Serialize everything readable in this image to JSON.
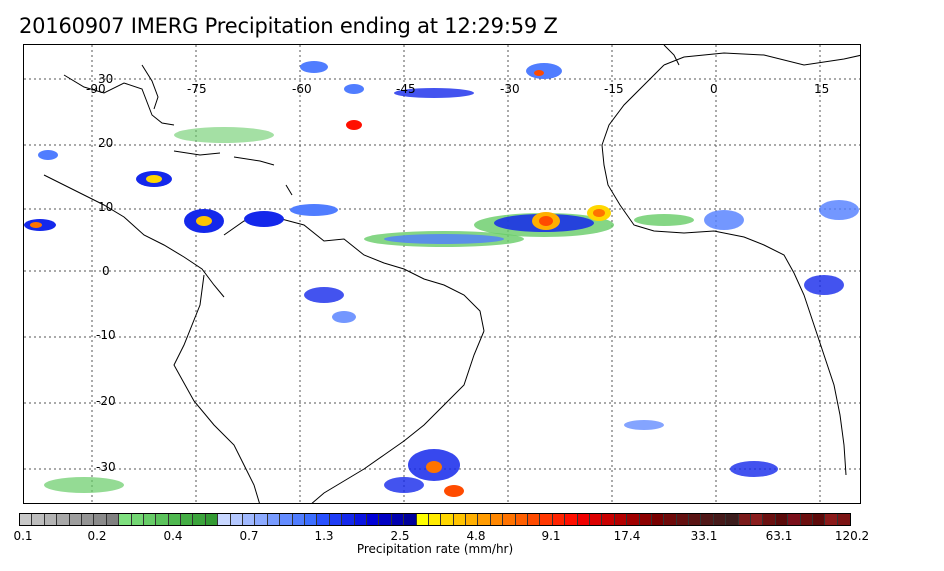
{
  "title": "20160907 IMERG Precipitation ending at 12:29:59 Z",
  "map": {
    "longitude_labels": [
      "-90",
      "-75",
      "-60",
      "-45",
      "-30",
      "-15",
      "0",
      "15"
    ],
    "latitude_labels": [
      "30",
      "20",
      "10",
      "0",
      "-10",
      "-20",
      "-30"
    ],
    "gridlines": true,
    "coastline_color": "#000000"
  },
  "colorbar": {
    "label": "Precipitation rate (mm/hr)",
    "tick_labels": [
      "0.1",
      "0.2",
      "0.4",
      "0.7",
      "1.3",
      "2.5",
      "4.8",
      "9.1",
      "17.4",
      "33.1",
      "63.1",
      "120.2"
    ],
    "colors": [
      "#c8c8c8",
      "#bdbdbd",
      "#b3b3b3",
      "#a8a8a8",
      "#9e9e9e",
      "#949494",
      "#8a8a8a",
      "#808080",
      "#7fe07f",
      "#73d673",
      "#67cc67",
      "#5bc25b",
      "#4fb84f",
      "#45ae45",
      "#3ca43c",
      "#339a33",
      "#c8d7ff",
      "#b4c8ff",
      "#a0b9ff",
      "#8caaff",
      "#789bff",
      "#648cff",
      "#507dff",
      "#3c6eff",
      "#2850ff",
      "#1e3cf5",
      "#1428eb",
      "#0a14e1",
      "#0000d7",
      "#0000c3",
      "#0000af",
      "#00009b",
      "#ffff00",
      "#ffeb00",
      "#ffd700",
      "#ffc300",
      "#ffaf00",
      "#ff9b00",
      "#ff8700",
      "#ff7300",
      "#ff5f00",
      "#ff4b00",
      "#ff3700",
      "#ff2300",
      "#ff0f00",
      "#f00000",
      "#dc0000",
      "#c80000",
      "#b40000",
      "#a00000",
      "#8c0000",
      "#780000",
      "#6e0a0a",
      "#641010",
      "#5a1414",
      "#501818",
      "#461a1a",
      "#3c1c1c",
      "#7a1a1a",
      "#8a1e1e",
      "#6a1010",
      "#5a0a0a",
      "#7a0f1a",
      "#6b0f0f",
      "#5d0a0a",
      "#8b1a1a",
      "#7c1414"
    ]
  }
}
